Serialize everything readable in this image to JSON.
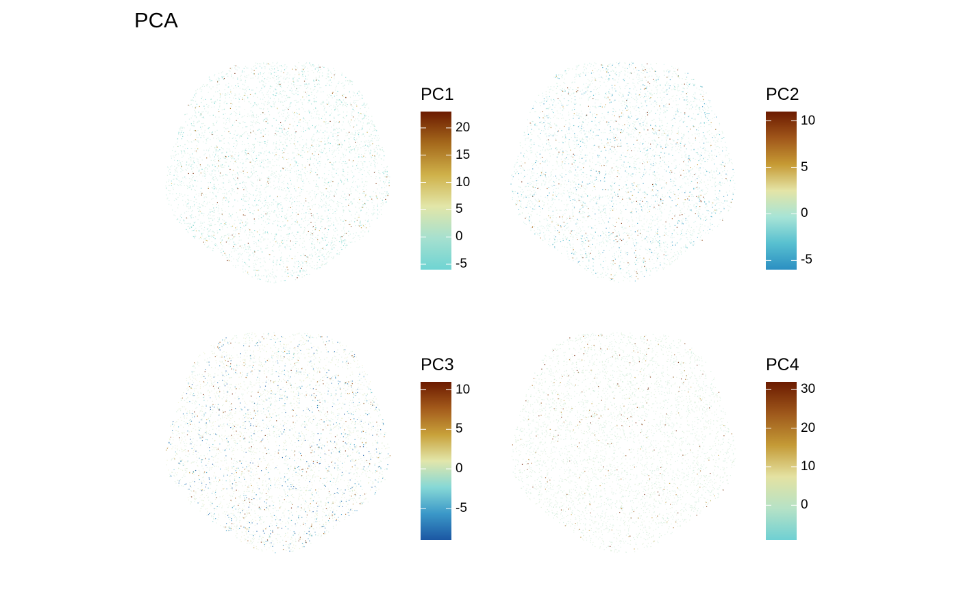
{
  "title": "PCA",
  "colors": {
    "background": "#ffffff",
    "scale_low": [
      "#2166ac",
      "#3f9ac6",
      "#7fd6d4",
      "#cfe8c0"
    ],
    "scale_mid": "#e8e0a0",
    "scale_high": [
      "#c9a035",
      "#a0621a",
      "#6b1a00"
    ]
  },
  "chart_data": [
    {
      "type": "scatter",
      "name": "PC1",
      "legend_title": "PC1",
      "legend_range": [
        -6,
        23
      ],
      "ticks": [
        -5,
        0,
        5,
        10,
        15,
        20
      ],
      "tick_labels": [
        "-5",
        "0",
        "5",
        "10",
        "15",
        "20"
      ],
      "color_scale": [
        "#6fd4d3",
        "#a6e0cf",
        "#e2e6a8",
        "#cfb14a",
        "#a5691c",
        "#6b1a00"
      ]
    },
    {
      "type": "scatter",
      "name": "PC2",
      "legend_title": "PC2",
      "legend_range": [
        -6,
        11
      ],
      "ticks": [
        -5,
        0,
        5,
        10
      ],
      "tick_labels": [
        "-5",
        "0",
        "5",
        "10"
      ],
      "color_scale": [
        "#2b8fc2",
        "#58c0d0",
        "#a7e4d6",
        "#e4e4a6",
        "#c69a34",
        "#a0561a",
        "#6b1a00"
      ]
    },
    {
      "type": "scatter",
      "name": "PC3",
      "legend_title": "PC3",
      "legend_range": [
        -9,
        11
      ],
      "ticks": [
        -5,
        0,
        5,
        10
      ],
      "tick_labels": [
        "-5",
        "0",
        "5",
        "10"
      ],
      "color_scale": [
        "#1b57a3",
        "#3b98c8",
        "#86d8d6",
        "#e2e6aa",
        "#c8a13a",
        "#a35a1b",
        "#6b1a00"
      ]
    },
    {
      "type": "scatter",
      "name": "PC4",
      "legend_title": "PC4",
      "legend_range": [
        -9,
        32
      ],
      "ticks": [
        0,
        10,
        20,
        30
      ],
      "tick_labels": [
        "0",
        "10",
        "20",
        "30"
      ],
      "color_scale": [
        "#6fd0d3",
        "#b6e2c6",
        "#e4e2a2",
        "#c49a36",
        "#9e581b",
        "#6b1a00"
      ]
    }
  ]
}
